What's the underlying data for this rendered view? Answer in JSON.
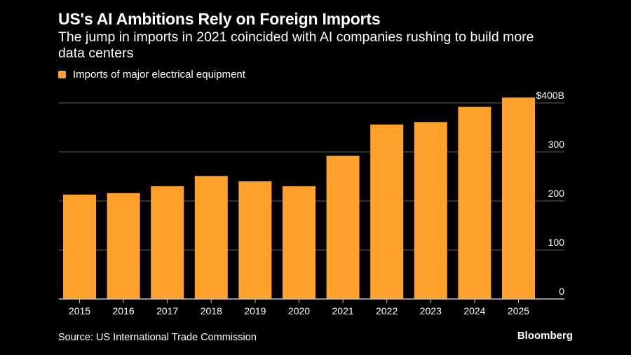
{
  "header": {
    "title": "US's AI Ambitions Rely on Foreign Imports",
    "subtitle": "The jump in imports in 2021 coincided with AI companies rushing to build more data centers"
  },
  "footer": {
    "source": "Source: US International Trade Commission",
    "brand": "Bloomberg"
  },
  "colors": {
    "bar": "#FFA12B",
    "background": "#000000",
    "gridline": "#4d4d4d",
    "axis": "#bfbfbf"
  },
  "chart_data": {
    "type": "bar",
    "title": "US's AI Ambitions Rely on Foreign Imports",
    "subtitle": "The jump in imports in 2021 coincided with AI companies rushing to build more data centers",
    "xlabel": "",
    "ylabel": "",
    "categories": [
      "2015",
      "2016",
      "2017",
      "2018",
      "2019",
      "2020",
      "2021",
      "2022",
      "2023",
      "2024",
      "2025"
    ],
    "series": [
      {
        "name": "Imports of major electrical equipment",
        "values": [
          213,
          216,
          230,
          251,
          240,
          230,
          292,
          356,
          361,
          392,
          411
        ]
      }
    ],
    "ylim": [
      0,
      400
    ],
    "yticks": [
      0,
      100,
      200,
      300,
      400
    ],
    "ytick_labels": [
      "0",
      "100",
      "200",
      "300",
      "$400B"
    ],
    "y_unit": "billions USD",
    "grid": true,
    "yaxis_side": "right",
    "legend_position": "top-left"
  }
}
